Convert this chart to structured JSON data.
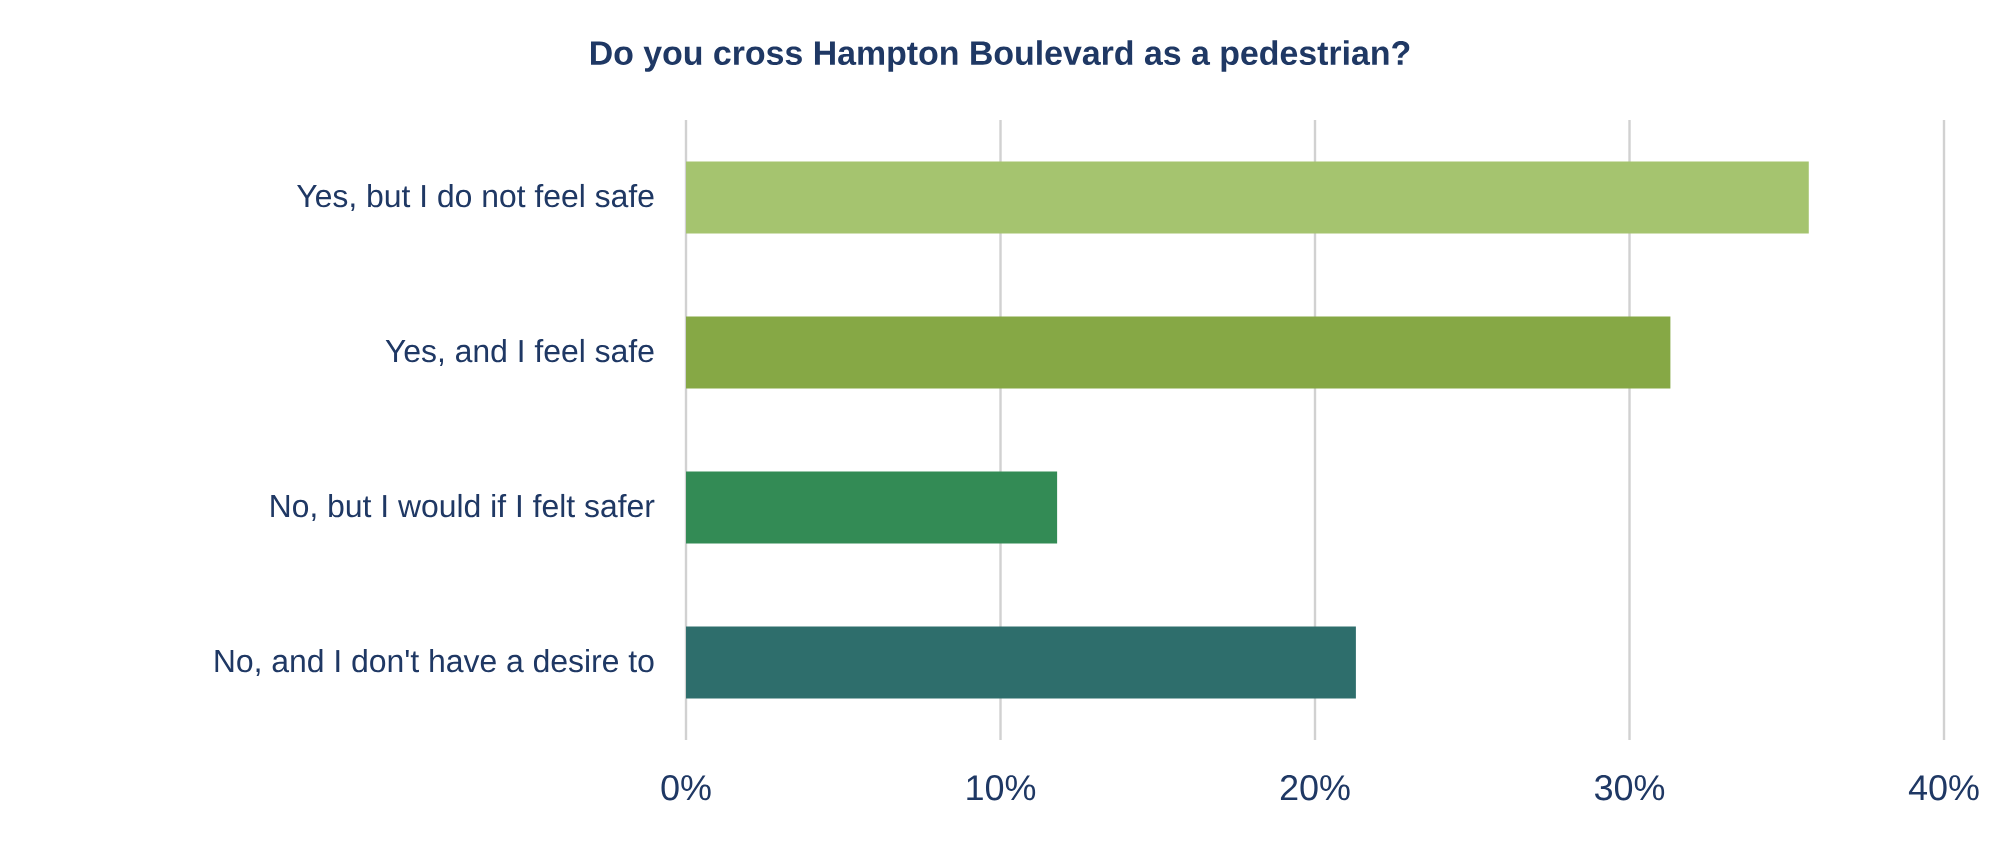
{
  "chart_data": {
    "type": "bar",
    "orientation": "horizontal",
    "title": "Do you cross Hampton Boulevard as a pedestrian?",
    "categories": [
      "Yes, but I do not feel safe",
      "Yes, and I feel safe",
      "No, but I would if I felt safer",
      "No, and I don't have a desire to"
    ],
    "values": [
      35.7,
      31.3,
      11.8,
      21.3
    ],
    "colors": [
      "#a5c46f",
      "#86a845",
      "#338b55",
      "#2e6e6c"
    ],
    "xlim": [
      0,
      40
    ],
    "xticks": [
      {
        "value": 0,
        "label": "0%"
      },
      {
        "value": 10,
        "label": "10%"
      },
      {
        "value": 20,
        "label": "20%"
      },
      {
        "value": 30,
        "label": "30%"
      },
      {
        "value": 40,
        "label": "40%"
      }
    ],
    "grid": "x"
  }
}
